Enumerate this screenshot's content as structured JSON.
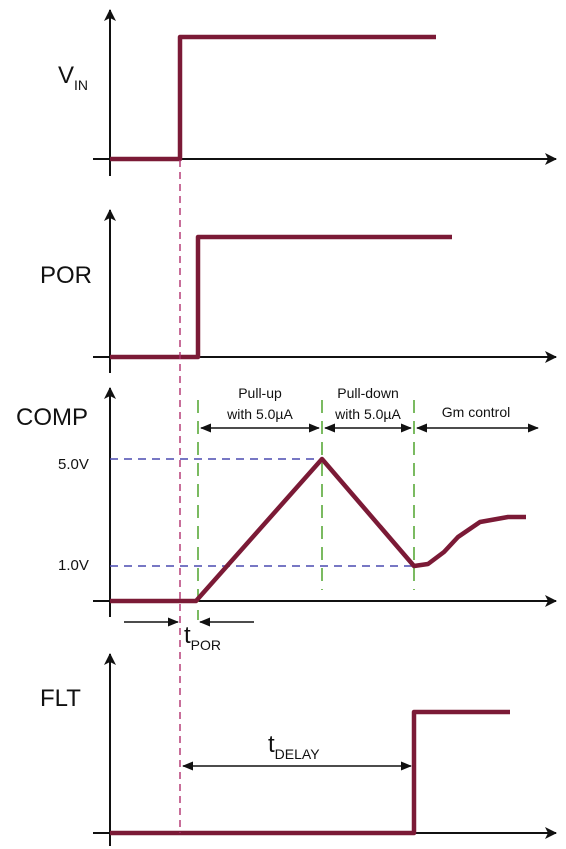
{
  "signals": {
    "vin": {
      "main": "V",
      "sub": "IN"
    },
    "por": {
      "label": "POR"
    },
    "comp": {
      "label": "COMP"
    },
    "flt": {
      "label": "FLT"
    }
  },
  "levels": {
    "high": "5.0V",
    "low": "1.0V"
  },
  "phases": {
    "pullup_line1": "Pull-up",
    "pullup_line2": "with 5.0µA",
    "pulldown_line1": "Pull-down",
    "pulldown_line2": "with 5.0µA",
    "gm": "Gm control"
  },
  "timing": {
    "tpor": {
      "main": "t",
      "sub": "POR"
    },
    "tdelay": {
      "main": "t",
      "sub": "DELAY"
    }
  },
  "colors": {
    "signal": "#7b1a36",
    "phase_marker": "#5aaa3a",
    "level_marker": "#4a4ab0",
    "por_marker": "#b0306e"
  }
}
